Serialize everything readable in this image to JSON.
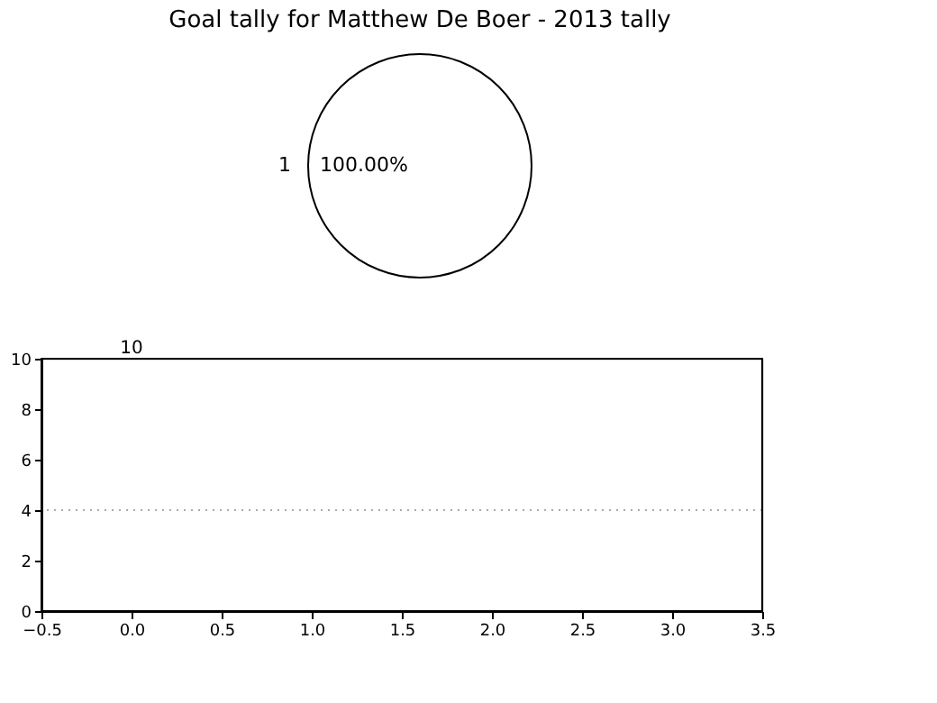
{
  "chart_data": [
    {
      "type": "pie",
      "title": "Goal tally for Matthew De Boer - 2013 tally",
      "categories": [
        "1"
      ],
      "values": [
        100
      ],
      "colors": [
        "#ffffff"
      ],
      "value_labels": [
        "100.00%"
      ],
      "legend": false
    },
    {
      "type": "line",
      "xlim": [
        -0.5,
        3.5
      ],
      "xticks": [
        -0.5,
        {
          "value": 0,
          "label": "0.0"
        },
        0.5,
        {
          "value": 1,
          "label": "1.0"
        },
        1.5,
        {
          "value": 2,
          "label": "2.0"
        },
        2.5,
        {
          "value": 3,
          "label": "3.0"
        },
        3.5
      ],
      "ylim": [
        0,
        10
      ],
      "yticks": [
        0,
        2,
        4,
        6,
        8,
        10
      ],
      "grid": false,
      "ref_lines": [
        {
          "axis": "y",
          "value": 4,
          "color": "#aaaaaa",
          "line_style": "dotted"
        }
      ],
      "annotations": [
        "10"
      ]
    }
  ]
}
